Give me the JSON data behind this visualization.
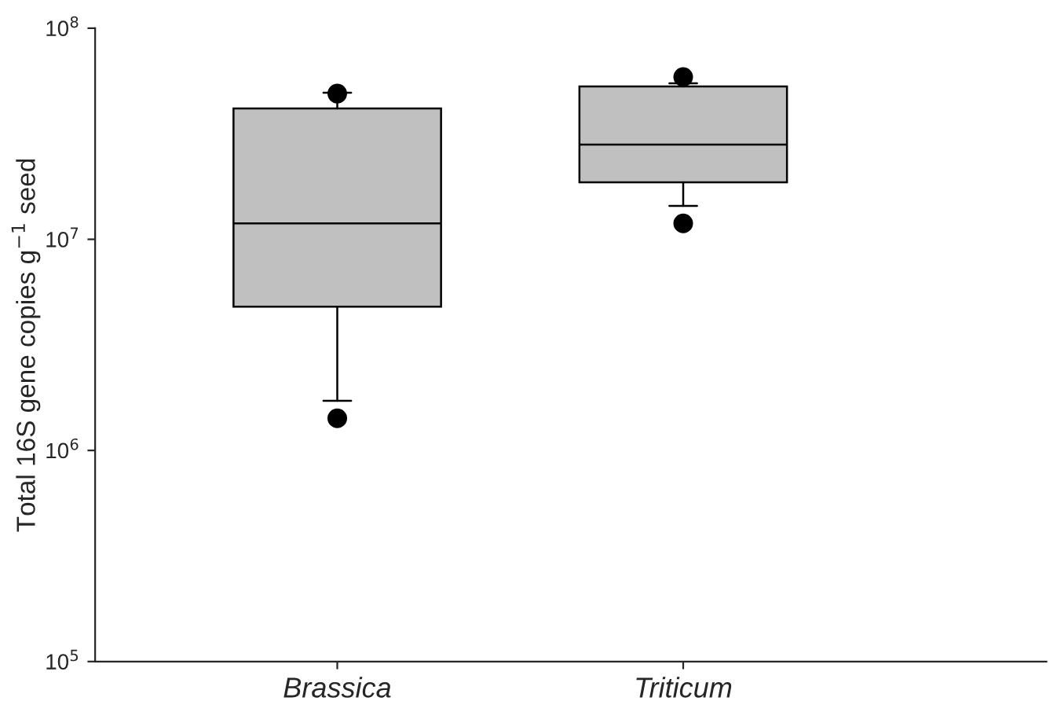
{
  "chart_data": {
    "type": "box",
    "ylabel": "Total 16S gene copies g$^{−1}$ seed",
    "categories": [
      "Brassica",
      "Triticum"
    ],
    "boxes": [
      {
        "low": 1720000,
        "q1": 4800000,
        "median": 11900000,
        "q3": 41700000,
        "high": 49500000,
        "outliers": [
          1420000,
          49000000
        ]
      },
      {
        "low": 14400000,
        "q1": 18600000,
        "median": 28100000,
        "q3": 53000000,
        "high": 54800000,
        "outliers": [
          11900000,
          58700000
        ]
      }
    ],
    "color": "#c0c0c0",
    "log": "y",
    "ylim": [
      100000,
      100000000
    ],
    "yticks": [
      {
        "value": 100000,
        "label": "10$^{5}$"
      },
      {
        "value": 1000000,
        "label": "10$^{6}$"
      },
      {
        "value": 10000000,
        "label": "10$^{7}$"
      },
      {
        "value": 100000000,
        "label": "10$^{8}$"
      }
    ],
    "grid": false,
    "legend": false
  }
}
